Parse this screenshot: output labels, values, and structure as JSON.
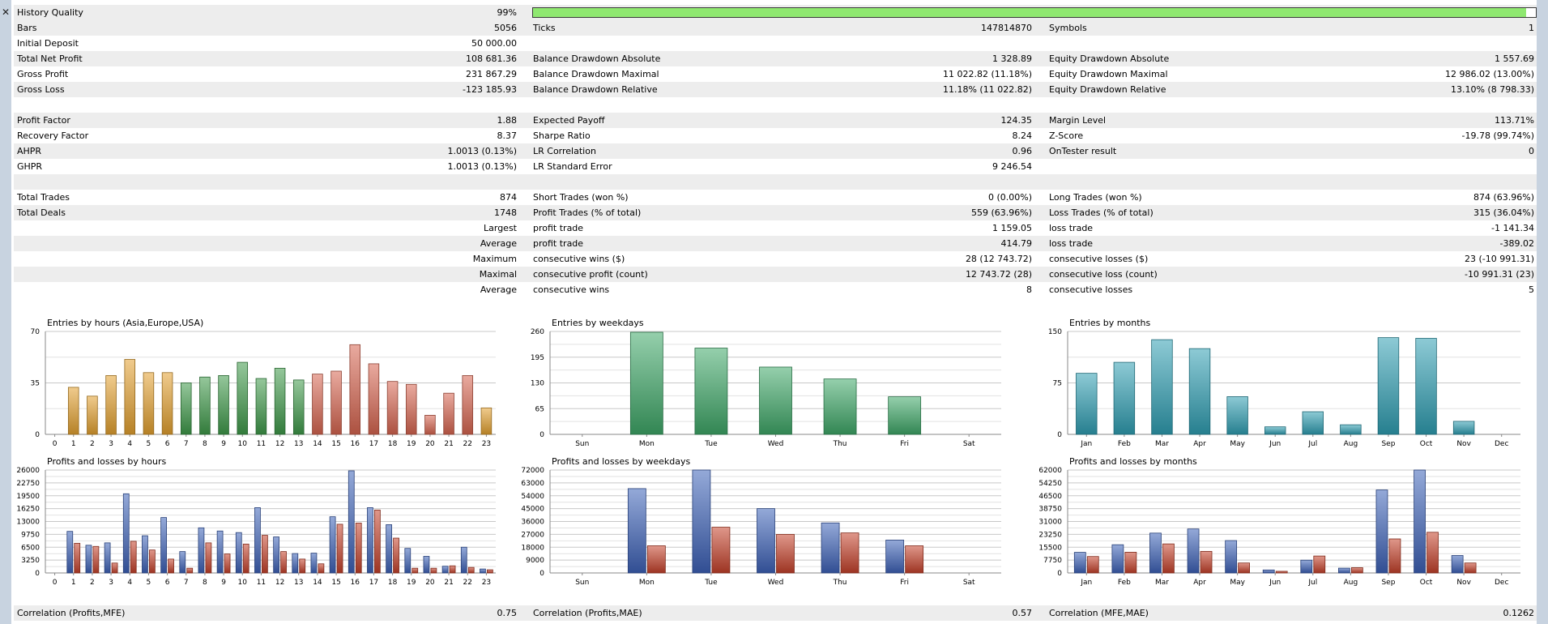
{
  "window": {
    "close_icon": "✕"
  },
  "history_quality": {
    "label": "History Quality",
    "value": "99%",
    "percent": 99,
    "bar_color": "#8fe870"
  },
  "summary_rows": [
    {
      "c1": [
        "Bars",
        "5056"
      ],
      "c2": [
        "Ticks",
        "147814870"
      ],
      "c3": [
        "Symbols",
        "1"
      ]
    },
    {
      "c1": [
        "Initial Deposit",
        "50 000.00"
      ],
      "c2": [
        "",
        ""
      ],
      "c3": [
        "",
        ""
      ]
    },
    {
      "c1": [
        "Total Net Profit",
        "108 681.36"
      ],
      "c2": [
        "Balance Drawdown Absolute",
        "1 328.89"
      ],
      "c3": [
        "Equity Drawdown Absolute",
        "1 557.69"
      ]
    },
    {
      "c1": [
        "Gross Profit",
        "231 867.29"
      ],
      "c2": [
        "Balance Drawdown Maximal",
        "11 022.82 (11.18%)"
      ],
      "c3": [
        "Equity Drawdown Maximal",
        "12 986.02 (13.00%)"
      ]
    },
    {
      "c1": [
        "Gross Loss",
        "-123 185.93"
      ],
      "c2": [
        "Balance Drawdown Relative",
        "11.18% (11 022.82)"
      ],
      "c3": [
        "Equity Drawdown Relative",
        "13.10% (8 798.33)"
      ]
    },
    {
      "c1": [
        "",
        ""
      ],
      "c2": [
        "",
        ""
      ],
      "c3": [
        "",
        ""
      ]
    },
    {
      "c1": [
        "Profit Factor",
        "1.88"
      ],
      "c2": [
        "Expected Payoff",
        "124.35"
      ],
      "c3": [
        "Margin Level",
        "113.71%"
      ]
    },
    {
      "c1": [
        "Recovery Factor",
        "8.37"
      ],
      "c2": [
        "Sharpe Ratio",
        "8.24"
      ],
      "c3": [
        "Z-Score",
        "-19.78 (99.74%)"
      ]
    },
    {
      "c1": [
        "AHPR",
        "1.0013 (0.13%)"
      ],
      "c2": [
        "LR Correlation",
        "0.96"
      ],
      "c3": [
        "OnTester result",
        "0"
      ]
    },
    {
      "c1": [
        "GHPR",
        "1.0013 (0.13%)"
      ],
      "c2": [
        "LR Standard Error",
        "9 246.54"
      ],
      "c3": [
        "",
        ""
      ]
    },
    {
      "c1": [
        "",
        ""
      ],
      "c2": [
        "",
        ""
      ],
      "c3": [
        "",
        ""
      ]
    },
    {
      "c1": [
        "Total Trades",
        "874"
      ],
      "c2": [
        "Short Trades (won %)",
        "0 (0.00%)"
      ],
      "c3": [
        "Long Trades (won %)",
        "874 (63.96%)"
      ]
    },
    {
      "c1": [
        "Total Deals",
        "1748"
      ],
      "c2": [
        "Profit Trades (% of total)",
        "559 (63.96%)"
      ],
      "c3": [
        "Loss Trades (% of total)",
        "315 (36.04%)"
      ]
    },
    {
      "c1": [
        "",
        "Largest"
      ],
      "c2": [
        "profit trade",
        "1 159.05"
      ],
      "c3": [
        "loss trade",
        "-1 141.34"
      ]
    },
    {
      "c1": [
        "",
        "Average"
      ],
      "c2": [
        "profit trade",
        "414.79"
      ],
      "c3": [
        "loss trade",
        "-389.02"
      ]
    },
    {
      "c1": [
        "",
        "Maximum"
      ],
      "c2": [
        "consecutive wins ($)",
        "28 (12 743.72)"
      ],
      "c3": [
        "consecutive losses ($)",
        "23 (-10 991.31)"
      ]
    },
    {
      "c1": [
        "",
        "Maximal"
      ],
      "c2": [
        "consecutive profit (count)",
        "12 743.72 (28)"
      ],
      "c3": [
        "consecutive loss (count)",
        "-10 991.31 (23)"
      ]
    },
    {
      "c1": [
        "",
        "Average"
      ],
      "c2": [
        "consecutive wins",
        "8"
      ],
      "c3": [
        "consecutive losses",
        "5"
      ]
    }
  ],
  "correlation": {
    "c1": [
      "Correlation (Profits,MFE)",
      "0.75"
    ],
    "c2": [
      "Correlation (Profits,MAE)",
      "0.57"
    ],
    "c3": [
      "Correlation (MFE,MAE)",
      "0.1262"
    ]
  },
  "chart_data": [
    {
      "id": "entries-hours",
      "type": "bar",
      "title": "Entries by hours (Asia,Europe,USA)",
      "categories": [
        "0",
        "1",
        "2",
        "3",
        "4",
        "5",
        "6",
        "7",
        "8",
        "9",
        "10",
        "11",
        "12",
        "13",
        "14",
        "15",
        "16",
        "17",
        "18",
        "19",
        "20",
        "21",
        "22",
        "23"
      ],
      "values": [
        0,
        32,
        26,
        40,
        51,
        42,
        42,
        35,
        39,
        40,
        49,
        38,
        45,
        37,
        41,
        43,
        61,
        48,
        36,
        34,
        13,
        28,
        40,
        18
      ],
      "yticks": [
        "70",
        "35",
        "0"
      ],
      "ylim": [
        0,
        70
      ],
      "colors": [
        "#e4a130",
        "#e4a130",
        "#e4a130",
        "#e4a130",
        "#e4a130",
        "#e4a130",
        "#e4a130",
        "#3e9a4a",
        "#3e9a4a",
        "#3e9a4a",
        "#3e9a4a",
        "#3e9a4a",
        "#3e9a4a",
        "#3e9a4a",
        "#d76550",
        "#d76550",
        "#d76550",
        "#d76550",
        "#d76550",
        "#d76550",
        "#d76550",
        "#d76550",
        "#d76550",
        "#e4a130"
      ]
    },
    {
      "id": "entries-weekdays",
      "type": "bar",
      "title": "Entries by weekdays",
      "categories": [
        "Sun",
        "Mon",
        "Tue",
        "Wed",
        "Thu",
        "Fri",
        "Sat"
      ],
      "values": [
        0,
        258,
        218,
        170,
        140,
        95,
        0
      ],
      "yticks": [
        "260",
        "195",
        "130",
        "65",
        "0"
      ],
      "ylim": [
        0,
        260
      ],
      "colors": [
        "#3fa868",
        "#3fa868",
        "#3fa868",
        "#3fa868",
        "#3fa868",
        "#3fa868",
        "#3fa868"
      ]
    },
    {
      "id": "entries-months",
      "type": "bar",
      "title": "Entries by months",
      "categories": [
        "Jan",
        "Feb",
        "Mar",
        "Apr",
        "May",
        "Jun",
        "Jul",
        "Aug",
        "Sep",
        "Oct",
        "Nov",
        "Dec"
      ],
      "values": [
        89,
        105,
        138,
        125,
        55,
        11,
        33,
        14,
        141,
        140,
        19,
        0
      ],
      "yticks": [
        "150",
        "75",
        "0"
      ],
      "ylim": [
        0,
        150
      ],
      "colors": [
        "#2f9fb3",
        "#2f9fb3",
        "#2f9fb3",
        "#2f9fb3",
        "#2f9fb3",
        "#2f9fb3",
        "#2f9fb3",
        "#2f9fb3",
        "#2f9fb3",
        "#2f9fb3",
        "#2f9fb3",
        "#2f9fb3"
      ]
    },
    {
      "id": "pl-hours",
      "type": "bar",
      "title": "Profits and losses by hours",
      "categories": [
        "0",
        "1",
        "2",
        "3",
        "4",
        "5",
        "6",
        "7",
        "8",
        "9",
        "10",
        "11",
        "12",
        "13",
        "14",
        "15",
        "16",
        "17",
        "18",
        "19",
        "20",
        "21",
        "22",
        "23"
      ],
      "series": [
        {
          "name": "Profits",
          "color": "#3d62b8",
          "values": [
            0,
            10500,
            7000,
            7600,
            20000,
            9400,
            14000,
            5400,
            11400,
            10600,
            10200,
            16500,
            9100,
            4900,
            5000,
            14200,
            25800,
            16500,
            12200,
            6200,
            4200,
            1700,
            6500,
            1000
          ]
        },
        {
          "name": "Losses",
          "color": "#c4412a",
          "values": [
            0,
            7500,
            6700,
            2500,
            8000,
            5800,
            3500,
            1200,
            7600,
            4800,
            7300,
            9500,
            5400,
            3500,
            2300,
            12300,
            12600,
            15900,
            8800,
            1200,
            1200,
            1800,
            1400,
            800
          ]
        }
      ],
      "yticks": [
        "26000",
        "22750",
        "19500",
        "16250",
        "13000",
        "9750",
        "6500",
        "3250",
        "0"
      ],
      "ylim": [
        0,
        26000
      ]
    },
    {
      "id": "pl-weekdays",
      "type": "bar",
      "title": "Profits and losses by weekdays",
      "categories": [
        "Sun",
        "Mon",
        "Tue",
        "Wed",
        "Thu",
        "Fri",
        "Sat"
      ],
      "series": [
        {
          "name": "Profits",
          "color": "#3d62b8",
          "values": [
            0,
            59000,
            72000,
            45000,
            35000,
            23000,
            0
          ]
        },
        {
          "name": "Losses",
          "color": "#c4412a",
          "values": [
            0,
            19000,
            32000,
            27000,
            28000,
            19000,
            0
          ]
        }
      ],
      "yticks": [
        "72000",
        "63000",
        "54000",
        "45000",
        "36000",
        "27000",
        "18000",
        "9000",
        "0"
      ],
      "ylim": [
        0,
        72000
      ]
    },
    {
      "id": "pl-months",
      "type": "bar",
      "title": "Profits and losses by months",
      "categories": [
        "Jan",
        "Feb",
        "Mar",
        "Apr",
        "May",
        "Jun",
        "Jul",
        "Aug",
        "Sep",
        "Oct",
        "Nov",
        "Dec"
      ],
      "series": [
        {
          "name": "Profits",
          "color": "#3d62b8",
          "values": [
            12400,
            17000,
            24000,
            26500,
            19500,
            1800,
            7700,
            2900,
            50000,
            62000,
            10500,
            0
          ]
        },
        {
          "name": "Losses",
          "color": "#c4412a",
          "values": [
            9900,
            12500,
            17500,
            13000,
            6000,
            1000,
            10200,
            3200,
            20500,
            24500,
            6000,
            0
          ]
        }
      ],
      "yticks": [
        "62000",
        "54250",
        "46500",
        "38750",
        "31000",
        "23250",
        "15500",
        "7750",
        "0"
      ],
      "ylim": [
        0,
        62000
      ]
    }
  ]
}
